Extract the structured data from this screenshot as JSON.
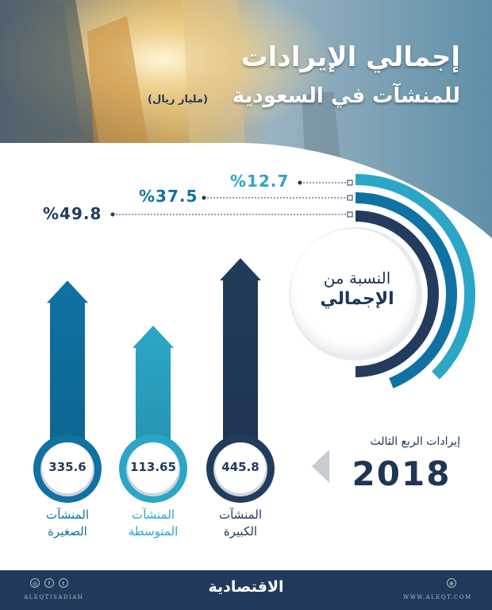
{
  "header": {
    "title_line1": "إجمالي الإيرادات",
    "title_line2": "للمنشآت في السعودية",
    "unit": "(مليار ريال)"
  },
  "gauge": {
    "label_line1": "النسبة من",
    "label_line2": "الإجمالي"
  },
  "period": {
    "label": "إيرادات الربع الثالث",
    "year": "2018"
  },
  "colors": {
    "large": "#233b5c",
    "medium": "#2ba6c6",
    "small": "#0f72a3",
    "gauge_light": "#2ba6c6"
  },
  "chart_data": {
    "type": "bar",
    "categories": [
      "المنشآت الكبيرة",
      "المنشآت المتوسطة",
      "المنشآت الصغيرة"
    ],
    "category_lines": [
      [
        "المنشآت",
        "الكبيرة"
      ],
      [
        "المنشآت",
        "المتوسطة"
      ],
      [
        "المنشآت",
        "الصغيرة"
      ]
    ],
    "values": [
      445.8,
      113.65,
      335.6
    ],
    "value_labels": [
      "445.8",
      "113.65",
      "335.6"
    ],
    "share_percent": [
      49.8,
      12.7,
      37.5
    ],
    "share_labels": [
      "%49.8",
      "%12.7",
      "%37.5"
    ]
  },
  "footer": {
    "brand": "الاقتصادية",
    "handle_left": "ALEQTISADIAH",
    "handle_right": "WWW.ALEQT.COM"
  }
}
